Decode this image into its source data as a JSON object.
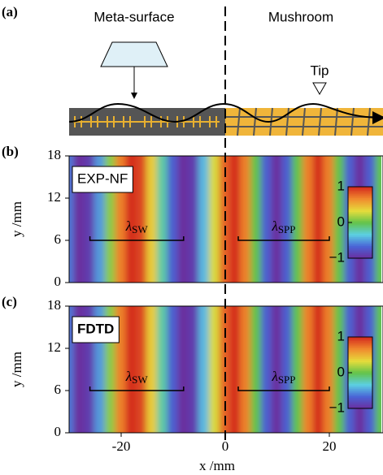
{
  "panel_a": {
    "label": "(a)",
    "left_label": "Meta-surface",
    "right_label": "Mushroom",
    "tip_label": "Tip"
  },
  "chart_data": [
    {
      "type": "heatmap",
      "panel_label": "(b)",
      "inset_label": "EXP-NF",
      "inset_bold": false,
      "y_label": "y /mm",
      "x": [
        -30,
        -28,
        -26,
        -24,
        -22,
        -20,
        -18,
        -16,
        -14,
        -12,
        -10,
        -8,
        -6,
        -4,
        -2,
        0,
        2,
        4,
        6,
        8,
        10,
        12,
        14,
        16,
        18,
        20,
        22,
        24,
        26,
        28,
        30
      ],
      "values": [
        -0.6,
        -1.0,
        -0.9,
        -0.5,
        0.1,
        0.7,
        1.0,
        0.9,
        0.4,
        -0.2,
        -0.7,
        -1.0,
        -0.9,
        -0.4,
        0.3,
        0.8,
        1.0,
        0.7,
        0,
        -0.7,
        -1.0,
        -0.7,
        0,
        0.7,
        1.0,
        0.7,
        0,
        -0.7,
        -1.0,
        -0.7,
        0
      ],
      "xlim": [
        -30,
        30
      ],
      "ylim": [
        0,
        18
      ],
      "yticks": [
        0,
        6,
        12,
        18
      ],
      "colormap": [
        "#6b2d9e",
        "#4a63d6",
        "#5ccfe3",
        "#62c34a",
        "#e6dc3c",
        "#f08a2e",
        "#d42a1e"
      ],
      "colorbar": {
        "range": [
          -1,
          1
        ],
        "ticks": [
          1,
          0,
          {
            "value": -1,
            "label": "−1"
          }
        ]
      },
      "brackets": [
        {
          "symbol": "λ",
          "subscript": "SW",
          "x": [
            -26,
            -8
          ],
          "y": 6
        },
        {
          "symbol": "λ",
          "subscript": "SPP",
          "x": [
            2.5,
            20
          ],
          "y": 6
        }
      ]
    },
    {
      "type": "heatmap",
      "panel_label": "(c)",
      "inset_label": "FDTD",
      "inset_bold": true,
      "y_label": "y /mm",
      "x_label": "x /mm",
      "x": [
        -30,
        -28,
        -26,
        -24,
        -22,
        -20,
        -18,
        -16,
        -14,
        -12,
        -10,
        -8,
        -6,
        -4,
        -2,
        0,
        2,
        4,
        6,
        8,
        10,
        12,
        14,
        16,
        18,
        20,
        22,
        24,
        26,
        28,
        30
      ],
      "values": [
        -0.6,
        -1.0,
        -0.9,
        -0.5,
        0.1,
        0.7,
        1.0,
        0.9,
        0.4,
        -0.2,
        -0.7,
        -1.0,
        -0.9,
        -0.4,
        0.3,
        0.8,
        1.0,
        0.7,
        0,
        -0.7,
        -1.0,
        -0.7,
        0,
        0.7,
        1.0,
        0.7,
        0,
        -0.7,
        -1.0,
        -0.7,
        0
      ],
      "xlim": [
        -30,
        30
      ],
      "ylim": [
        0,
        18
      ],
      "yticks": [
        0,
        6,
        12,
        18
      ],
      "xticks": [
        -20,
        0,
        20
      ],
      "colormap": [
        "#6b2d9e",
        "#4a63d6",
        "#5ccfe3",
        "#62c34a",
        "#e6dc3c",
        "#f08a2e",
        "#d42a1e"
      ],
      "colorbar": {
        "range": [
          -1,
          1
        ],
        "ticks": [
          1,
          0,
          {
            "value": -1,
            "label": "−1"
          }
        ]
      },
      "brackets": [
        {
          "symbol": "λ",
          "subscript": "SW",
          "x": [
            -26,
            -8
          ],
          "y": 6
        },
        {
          "symbol": "λ",
          "subscript": "SPP",
          "x": [
            2.5,
            20
          ],
          "y": 6
        }
      ]
    }
  ]
}
